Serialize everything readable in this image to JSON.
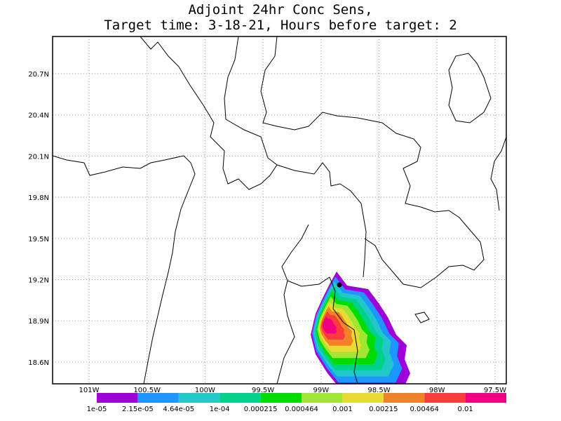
{
  "title": [
    "Adjoint 24hr Conc Sens,",
    "Target time: 3-18-21, Hours before target: 2"
  ],
  "map": {
    "lat_labels": [
      "20.7N",
      "20.4N",
      "20.1N",
      "19.8N",
      "19.5N",
      "19.2N",
      "18.9N",
      "18.6N"
    ],
    "lon_labels": [
      "101W",
      "100.5W",
      "100W",
      "99.5W",
      "99W",
      "98.5W",
      "98W",
      "97.5W"
    ]
  },
  "colorbar": {
    "colors": [
      "#a000d8",
      "#1e96ff",
      "#20c8c8",
      "#00d28c",
      "#00dc00",
      "#a0e632",
      "#e6dc32",
      "#f08228",
      "#fa3c3c",
      "#f00082"
    ],
    "labels": [
      "1e-05",
      "2.15e-05",
      "4.64e-05",
      "1e-04",
      "0.000215",
      "0.000464",
      "0.001",
      "0.00215",
      "0.00464",
      "0.01"
    ]
  }
}
